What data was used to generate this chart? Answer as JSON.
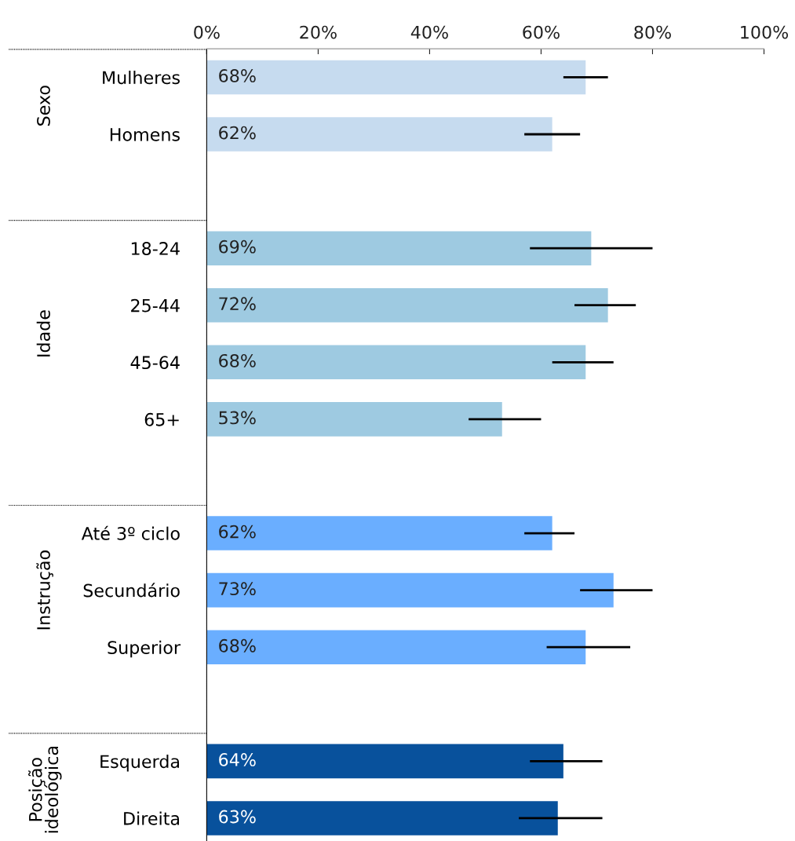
{
  "chart_data": {
    "type": "bar",
    "orientation": "horizontal",
    "categories": [
      "Mulheres",
      "Homens",
      null,
      "18-24",
      "25-44",
      "45-64",
      "65+",
      null,
      "Até 3º ciclo",
      "Secundário",
      "Superior",
      null,
      "Esquerda",
      "Direita"
    ],
    "series": [
      {
        "color": "#c6dbef",
        "values": [
          68,
          62,
          null,
          null,
          null,
          null,
          null,
          null,
          null,
          null,
          null,
          null,
          null,
          null
        ],
        "errors": [
          [
            64,
            72
          ],
          [
            57,
            67
          ],
          null,
          null,
          null,
          null,
          null,
          null,
          null,
          null,
          null,
          null,
          null,
          null
        ],
        "value_labels": [
          "68%",
          "62%",
          null,
          null,
          null,
          null,
          null,
          null,
          null,
          null,
          null,
          null,
          null,
          null
        ]
      },
      {
        "color": "#9ecae1",
        "values": [
          null,
          null,
          null,
          69,
          72,
          68,
          53,
          null,
          null,
          null,
          null,
          null,
          null,
          null
        ],
        "errors": [
          null,
          null,
          null,
          [
            58,
            80
          ],
          [
            66,
            77
          ],
          [
            62,
            73
          ],
          [
            47,
            60
          ],
          null,
          null,
          null,
          null,
          null,
          null,
          null
        ],
        "value_labels": [
          null,
          null,
          null,
          "69%",
          "72%",
          "68%",
          "53%",
          null,
          null,
          null,
          null,
          null,
          null,
          null
        ]
      },
      {
        "color": "#6aaeff",
        "values": [
          null,
          null,
          null,
          null,
          null,
          null,
          null,
          null,
          62,
          73,
          68,
          null,
          null,
          null
        ],
        "errors": [
          null,
          null,
          null,
          null,
          null,
          null,
          null,
          null,
          [
            57,
            66
          ],
          [
            67,
            80
          ],
          [
            61,
            76
          ],
          null,
          null,
          null
        ],
        "value_labels": [
          null,
          null,
          null,
          null,
          null,
          null,
          null,
          null,
          "62%",
          "73%",
          "68%",
          null,
          null,
          null
        ]
      },
      {
        "color": "#08519c",
        "values": [
          null,
          null,
          null,
          null,
          null,
          null,
          null,
          null,
          null,
          null,
          null,
          null,
          64,
          63
        ],
        "errors": [
          null,
          null,
          null,
          null,
          null,
          null,
          null,
          null,
          null,
          null,
          null,
          null,
          [
            58,
            71
          ],
          [
            56,
            71
          ]
        ],
        "value_labels": [
          null,
          null,
          null,
          null,
          null,
          null,
          null,
          null,
          null,
          null,
          null,
          null,
          "64%",
          "63%"
        ]
      }
    ],
    "xlim": [
      0,
      100
    ],
    "xticks": [
      {
        "value": 0,
        "label": "0%"
      },
      {
        "value": 20,
        "label": "20%"
      },
      {
        "value": 40,
        "label": "40%"
      },
      {
        "value": 60,
        "label": "60%"
      },
      {
        "value": 80,
        "label": "80%"
      },
      {
        "value": 100,
        "label": "100%"
      }
    ],
    "annotations": [
      "Sexo",
      "Idade",
      "Instrução",
      "Posição ideológica"
    ],
    "grid": false,
    "legend": false
  }
}
